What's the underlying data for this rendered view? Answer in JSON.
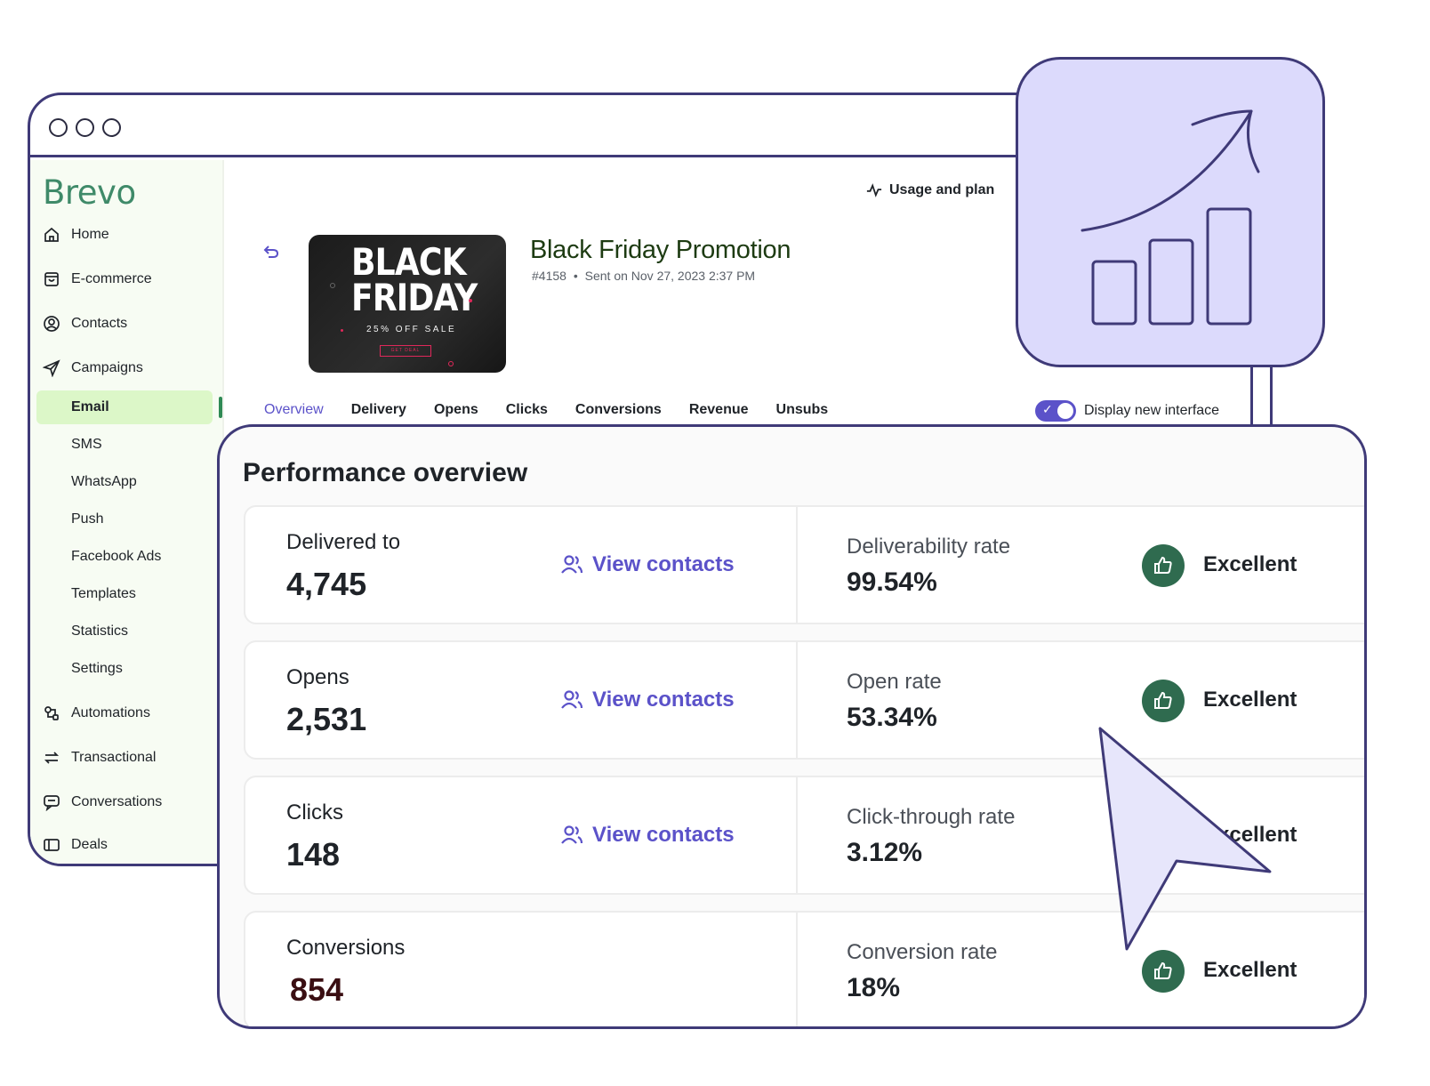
{
  "sidebar": {
    "logo": "Brevo",
    "items": [
      {
        "label": "Home",
        "icon": "home-icon"
      },
      {
        "label": "E-commerce",
        "icon": "shopping-bag-icon"
      },
      {
        "label": "Contacts",
        "icon": "user-circle-icon"
      },
      {
        "label": "Campaigns",
        "icon": "paper-plane-icon"
      }
    ],
    "sub_items": [
      "Email",
      "SMS",
      "WhatsApp",
      "Push",
      "Facebook Ads",
      "Templates",
      "Statistics",
      "Settings"
    ],
    "lower_items": [
      {
        "label": "Automations",
        "icon": "automation-icon"
      },
      {
        "label": "Transactional",
        "icon": "arrows-exchange-icon"
      },
      {
        "label": "Conversations",
        "icon": "chat-icon"
      },
      {
        "label": "Deals",
        "icon": "deals-icon"
      }
    ]
  },
  "header": {
    "usage_label": "Usage and plan"
  },
  "campaign": {
    "title": "Black Friday Promotion",
    "id": "#4158",
    "separator": "•",
    "sent": "Sent on Nov 27, 2023 2:37 PM",
    "banner": {
      "line1": "BLACK",
      "line2": "FRIDAY",
      "sale": "25% OFF SALE",
      "cta": "GET DEAL"
    }
  },
  "tabs": [
    "Overview",
    "Delivery",
    "Opens",
    "Clicks",
    "Conversions",
    "Revenue",
    "Unsubs"
  ],
  "active_tab": "Overview",
  "toggle": {
    "label": "Display new interface",
    "on": true
  },
  "performance": {
    "title": "Performance overview",
    "rows": [
      {
        "label": "Delivered to",
        "value": "4,745",
        "link": "View contacts",
        "rate_label": "Deliverability rate",
        "rate_value": "99.54%",
        "badge": "Excellent"
      },
      {
        "label": "Opens",
        "value": "2,531",
        "link": "View contacts",
        "rate_label": "Open rate",
        "rate_value": "53.34%",
        "badge": "Excellent"
      },
      {
        "label": "Clicks",
        "value": "148",
        "link": "View contacts",
        "rate_label": "Click-through rate",
        "rate_value": "3.12%",
        "badge": "Excellent"
      },
      {
        "label": "Conversions",
        "value": "854",
        "link": "",
        "rate_label": "Conversion rate",
        "rate_value": "18%",
        "badge": "Excellent"
      }
    ]
  },
  "colors": {
    "outline": "#3f3a78",
    "accent": "#5b52c9",
    "brand_green": "#3f8a69",
    "active_bg": "#dcf7c8",
    "badge_green": "#2f6b4f",
    "chart_card_bg": "#dcdafc"
  }
}
